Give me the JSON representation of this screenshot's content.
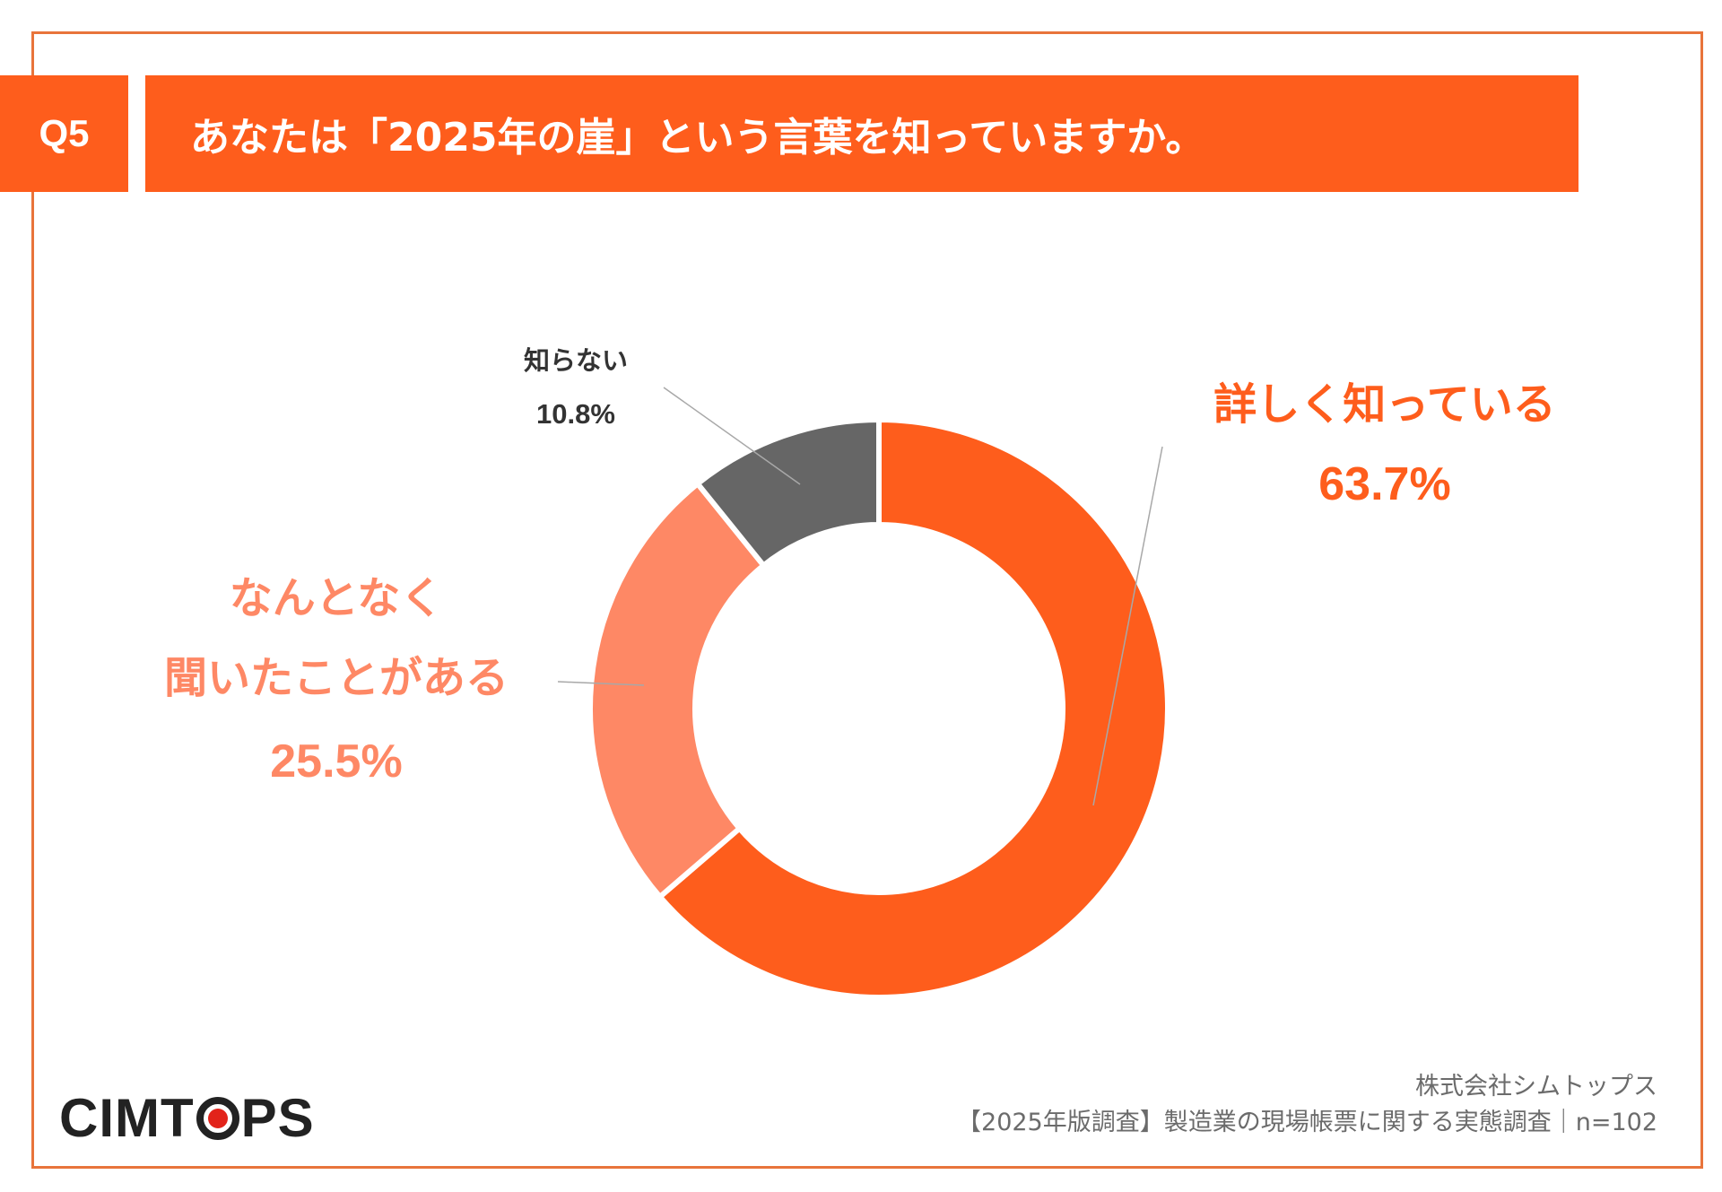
{
  "question": {
    "badge": "Q5",
    "title": "あなたは「2025年の崖」という言葉を知っていますか。"
  },
  "chart_data": {
    "type": "pie",
    "donut": true,
    "slices": [
      {
        "label": "詳しく知っている",
        "value": 63.7,
        "value_label": "63.7%",
        "color": "#fe5d1c"
      },
      {
        "label": "なんとなく聞いたことがある",
        "value": 25.5,
        "value_label": "25.5%",
        "color": "#fe8865"
      },
      {
        "label": "知らない",
        "value": 10.8,
        "value_label": "10.8%",
        "color": "#666666"
      }
    ]
  },
  "labels": {
    "know": {
      "line1": "詳しく知っている",
      "value": "63.7%"
    },
    "heard": {
      "line1": "なんとなく",
      "line2": "聞いたことがある",
      "value": "25.5%"
    },
    "dont_know": {
      "line1": "知らない",
      "value": "10.8%"
    }
  },
  "brand": {
    "logo_before": "CIMT",
    "logo_after": "PS"
  },
  "footer": {
    "company": "株式会社シムトップス",
    "survey": "【2025年版調査】製造業の現場帳票に関する実態調査｜n=102"
  }
}
